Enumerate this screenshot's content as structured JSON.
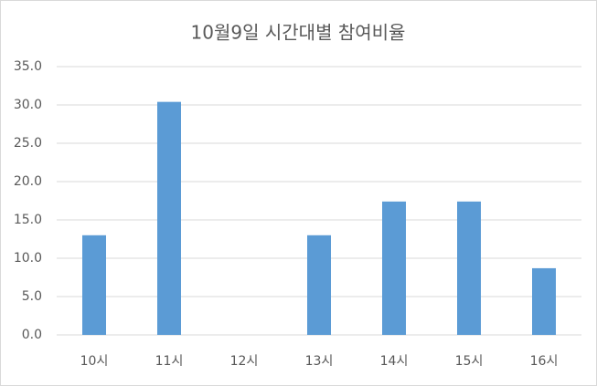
{
  "chart_data": {
    "type": "bar",
    "title": "10월9일 시간대별 참여비율",
    "categories": [
      "10시",
      "11시",
      "12시",
      "13시",
      "14시",
      "15시",
      "16시"
    ],
    "values": [
      13.0,
      30.4,
      0,
      13.0,
      17.4,
      17.4,
      8.7
    ],
    "color": "#5b9bd5",
    "ylim": [
      0,
      35
    ],
    "yticks": [
      {
        "value": 0,
        "label": "0.0"
      },
      {
        "value": 5,
        "label": "5.0"
      },
      {
        "value": 10,
        "label": "10.0"
      },
      {
        "value": 15,
        "label": "15.0"
      },
      {
        "value": 20,
        "label": "20.0"
      },
      {
        "value": 25,
        "label": "25.0"
      },
      {
        "value": 30,
        "label": "30.0"
      },
      {
        "value": 35,
        "label": "35.0"
      }
    ],
    "grid": true
  }
}
